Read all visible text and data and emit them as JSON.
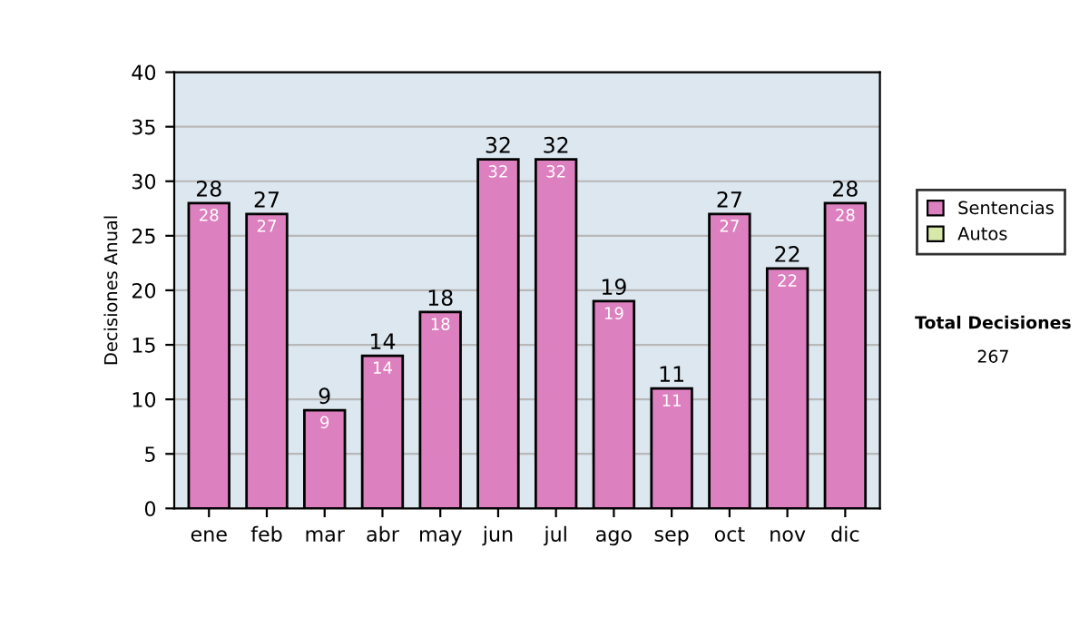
{
  "chart_data": {
    "type": "bar",
    "stacked": true,
    "ylabel": "Decisiones Anual",
    "categories": [
      "ene",
      "feb",
      "mar",
      "abr",
      "may",
      "jun",
      "jul",
      "ago",
      "sep",
      "oct",
      "nov",
      "dic"
    ],
    "series": [
      {
        "name": "Sentencias",
        "color": "#dd80bf",
        "values": [
          28,
          27,
          9,
          14,
          18,
          32,
          32,
          19,
          11,
          27,
          22,
          28
        ]
      },
      {
        "name": "Autos",
        "color": "#d8e8a8",
        "values": [
          null,
          null,
          null,
          null,
          null,
          null,
          null,
          null,
          null,
          null,
          null,
          null
        ]
      }
    ],
    "totals": [
      "28",
      "27",
      "9",
      "14",
      "18",
      "32",
      "32",
      "19",
      "11",
      "27",
      "22",
      "28"
    ],
    "data_labels": true,
    "ylim": [
      0,
      40
    ],
    "yticks": [
      0,
      5,
      10,
      15,
      20,
      25,
      30,
      35,
      40
    ],
    "grid": "y",
    "legend": "right",
    "annotations": [
      "Total Decisiones",
      "267"
    ]
  }
}
